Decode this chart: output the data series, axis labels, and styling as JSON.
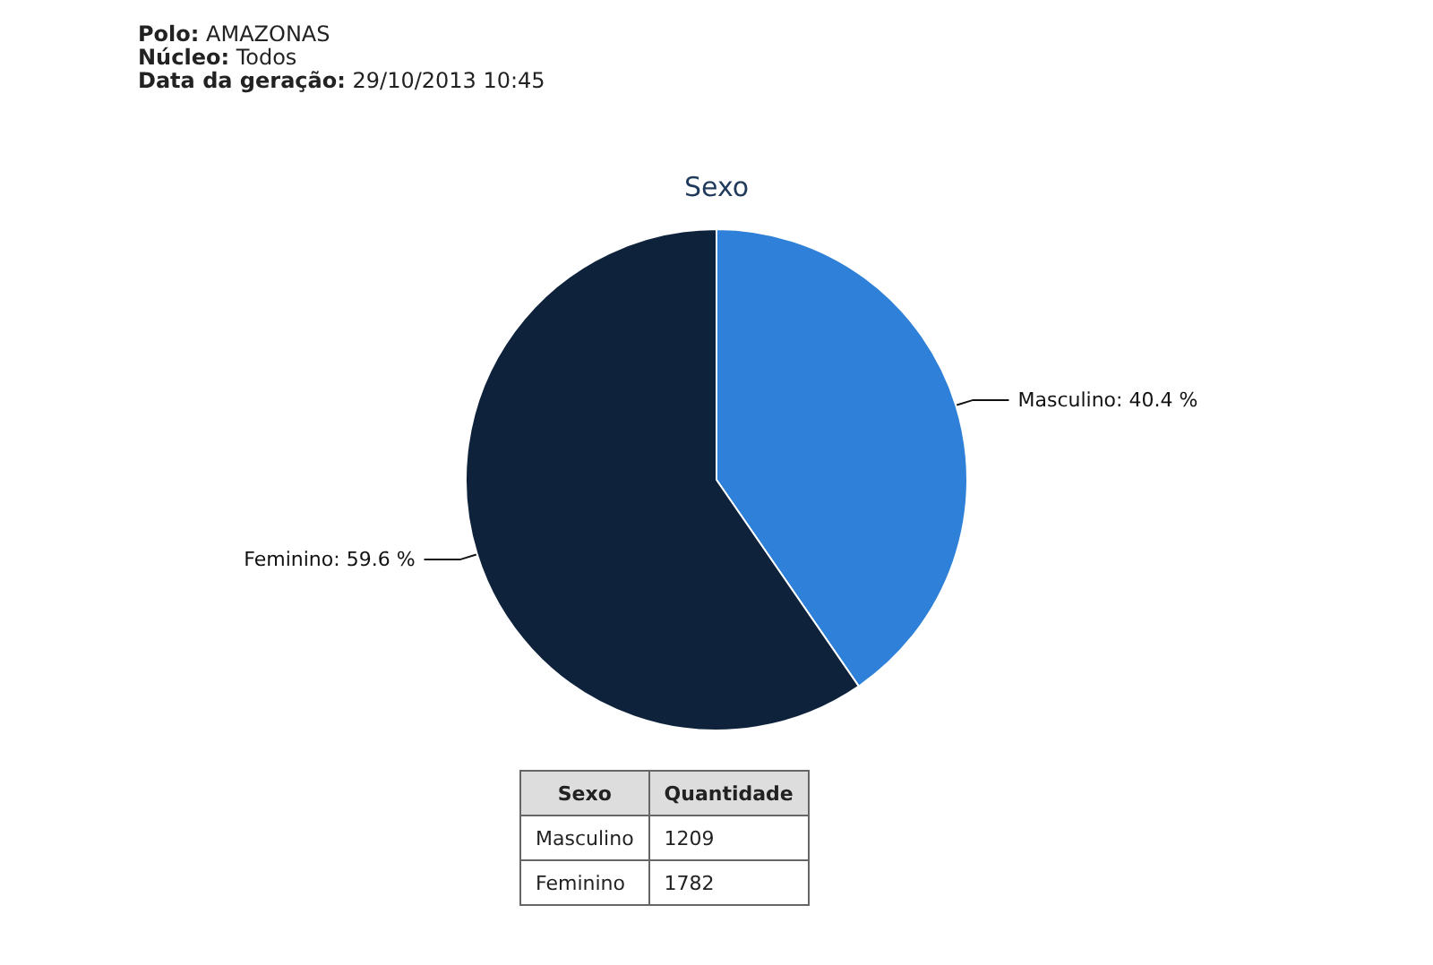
{
  "chart_data": [
    {
      "type": "pie",
      "title": "Sexo",
      "annotations": [
        "Polo: AMAZONAS",
        "Núcleo: Todos",
        "Data da geração: 29/10/2013 10:45"
      ],
      "categories": [
        "Masculino",
        "Feminino"
      ],
      "values": [
        40.4,
        59.6
      ],
      "colors": [
        "#2f80d8",
        "#0e233b"
      ],
      "value_labels": [
        "40.4 %",
        "59.6 %"
      ]
    },
    {
      "type": "other",
      "categories": [
        "Masculino",
        "Feminino"
      ],
      "values": [
        1209,
        1782
      ],
      "xlabel": "Sexo",
      "ylabel": "Quantidade",
      "data_labels": true
    }
  ]
}
